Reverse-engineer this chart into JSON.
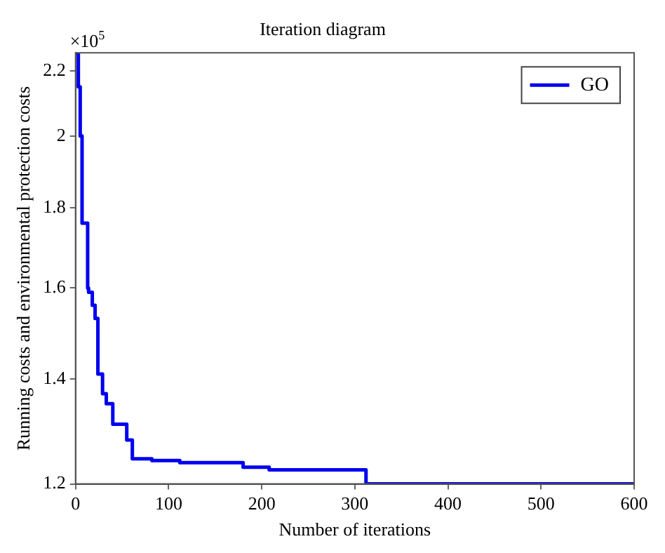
{
  "chart_data": {
    "type": "step",
    "title": "Iteration diagram",
    "xlabel": "Number of iterations",
    "ylabel": "Running costs and environmental protection costs",
    "annotations": [
      "×10$^{5}$"
    ],
    "x": [
      1,
      3,
      5,
      7,
      13,
      14,
      18,
      21,
      24,
      29,
      33,
      40,
      55,
      61,
      82,
      112,
      180,
      208,
      312,
      600
    ],
    "series": [
      {
        "name": "GO",
        "color": "#0000ee",
        "values": [
          2.26,
          2.15,
          2.0,
          1.76,
          1.6,
          1.59,
          1.56,
          1.53,
          1.41,
          1.37,
          1.35,
          1.31,
          1.28,
          1.245,
          1.242,
          1.238,
          1.23,
          1.225,
          1.2,
          1.2
        ]
      }
    ],
    "xlim": [
      0,
      600
    ],
    "xticks": [
      0,
      100,
      200,
      300,
      400,
      500,
      600
    ],
    "ylim": [
      1.2,
      2.26
    ],
    "yticks": [
      1.2,
      1.4,
      1.6,
      1.8,
      2,
      2.2
    ],
    "log": "y",
    "grid": false,
    "legend": "top right",
    "line_style": "solid",
    "marker": "none"
  }
}
